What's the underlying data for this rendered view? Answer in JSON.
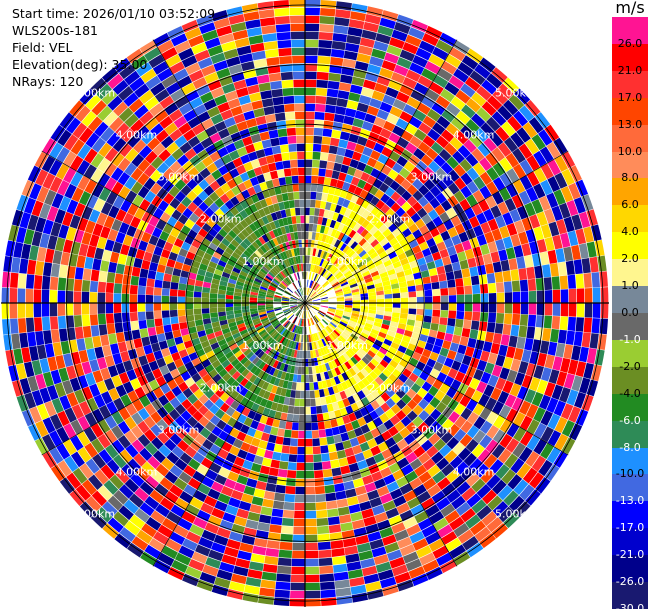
{
  "info": {
    "start_time": "Start time: 2026/01/10 03:52:09",
    "instrument": "WLS200s-181",
    "field": "Field: VEL",
    "elevation": "Elevation(deg): 35.00",
    "nrays": "NRays: 120"
  },
  "colorbar": {
    "unit": "m/s",
    "levels": [
      {
        "label": "26.0",
        "color": "#ff1493"
      },
      {
        "label": "21.0",
        "color": "#ff0000"
      },
      {
        "label": "17.0",
        "color": "#ff3030"
      },
      {
        "label": "13.0",
        "color": "#ff4500"
      },
      {
        "label": "10.0",
        "color": "#ff6a3a"
      },
      {
        "label": "8.0",
        "color": "#ff8c5a"
      },
      {
        "label": "6.0",
        "color": "#ffa500"
      },
      {
        "label": "4.0",
        "color": "#ffd700"
      },
      {
        "label": "2.0",
        "color": "#ffff00"
      },
      {
        "label": "1.0",
        "color": "#fff68f"
      },
      {
        "label": "0.0",
        "color": "#778899"
      },
      {
        "label": "-1.0",
        "color": "#696969"
      },
      {
        "label": "-2.0",
        "color": "#9acd32"
      },
      {
        "label": "-4.0",
        "color": "#6b8e23"
      },
      {
        "label": "-6.0",
        "color": "#228b22"
      },
      {
        "label": "-8.0",
        "color": "#2e8b57"
      },
      {
        "label": "-10.0",
        "color": "#1e90ff"
      },
      {
        "label": "-13.0",
        "color": "#4169e1"
      },
      {
        "label": "-17.0",
        "color": "#0000ff"
      },
      {
        "label": "-21.0",
        "color": "#0000cd"
      },
      {
        "label": "-26.0",
        "color": "#00008b"
      },
      {
        "label": "-30.0",
        "color": "#191970"
      }
    ]
  },
  "chart_data": {
    "type": "heatmap",
    "projection": "polar-ppi",
    "field": "VEL",
    "unit": "m/s",
    "elevation_deg": 35.0,
    "n_rays": 120,
    "range_rings_km": [
      1.0,
      2.0,
      3.0,
      4.0,
      5.0
    ],
    "range_ring_labels": [
      "1.00km",
      "2.00km",
      "3.00km",
      "4.00km",
      "5.00km"
    ],
    "max_range_km": 5.1,
    "color_levels": [
      26.0,
      21.0,
      17.0,
      13.0,
      10.0,
      8.0,
      6.0,
      4.0,
      2.0,
      1.0,
      0.0,
      -1.0,
      -2.0,
      -4.0,
      -6.0,
      -8.0,
      -10.0,
      -13.0,
      -17.0,
      -21.0,
      -26.0,
      -30.0
    ],
    "notes_region": {
      "inner_east_sector": "yellow to light yellow (about 1 to 4 m/s)",
      "inner_west_sector": "olive to green (about -2 to -6 m/s)",
      "outer_ranges": "mixed noise across the full scale"
    }
  }
}
